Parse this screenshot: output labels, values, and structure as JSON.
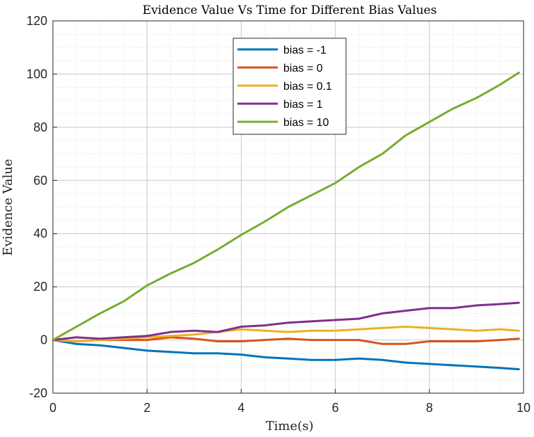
{
  "chart_data": {
    "type": "line",
    "title": "Evidence Value Vs Time for Different Bias Values",
    "xlabel": "Time(s)",
    "ylabel": "Evidence Value",
    "xlim": [
      0,
      10
    ],
    "ylim": [
      -20,
      120
    ],
    "xticks": [
      0,
      2,
      4,
      6,
      8,
      10
    ],
    "yticks": [
      -20,
      0,
      20,
      40,
      60,
      80,
      100,
      120
    ],
    "grid": true,
    "minor_grid": true,
    "legend_position": "top-center",
    "x": [
      0,
      0.5,
      1,
      1.5,
      2,
      2.5,
      3,
      3.5,
      4,
      4.5,
      5,
      5.5,
      6,
      6.5,
      7,
      7.5,
      8,
      8.5,
      9,
      9.5,
      9.9
    ],
    "series": [
      {
        "name": "bias = -1",
        "color": "#0072BD",
        "values": [
          0,
          -1.5,
          -2,
          -3,
          -4,
          -4.5,
          -5,
          -5,
          -5.5,
          -6.5,
          -7,
          -7.5,
          -7.5,
          -7,
          -7.5,
          -8.5,
          -9,
          -9.5,
          -10,
          -10.5,
          -11
        ]
      },
      {
        "name": "bias = 0",
        "color": "#D95319",
        "values": [
          0,
          -0.5,
          0,
          0,
          0,
          1,
          0.5,
          -0.5,
          -0.5,
          0,
          0.5,
          0,
          0,
          0,
          -1.5,
          -1.5,
          -0.5,
          -0.5,
          -0.5,
          0,
          0.5
        ]
      },
      {
        "name": "bias = 0.1",
        "color": "#EDB120",
        "values": [
          0,
          -0.5,
          0,
          0.5,
          1,
          1.5,
          2,
          3,
          4,
          3.5,
          3,
          3.5,
          3.5,
          4,
          4.5,
          5,
          4.5,
          4,
          3.5,
          4,
          3.5
        ]
      },
      {
        "name": "bias = 1",
        "color": "#7E2F8E",
        "values": [
          0,
          1,
          0.5,
          1,
          1.5,
          3,
          3.5,
          3,
          5,
          5.5,
          6.5,
          7,
          7.5,
          8,
          10,
          11,
          12,
          12,
          13,
          13.5,
          14
        ]
      },
      {
        "name": "bias = 10",
        "color": "#77AC30",
        "values": [
          0,
          5,
          10,
          14.5,
          20.5,
          25,
          29,
          34,
          39.5,
          44.5,
          50,
          54.5,
          59,
          65,
          70,
          77,
          82,
          87,
          91,
          96,
          100.5
        ]
      }
    ]
  }
}
